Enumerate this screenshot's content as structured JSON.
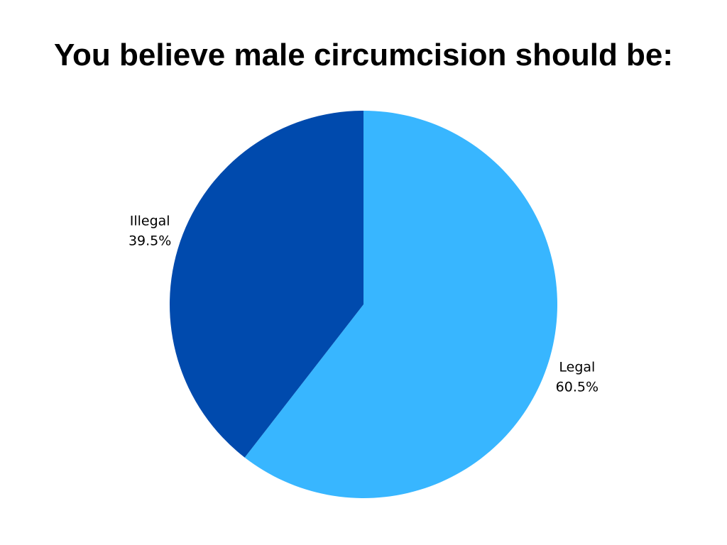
{
  "chart_data": {
    "type": "pie",
    "title": "You believe male circumcision should be:",
    "categories": [
      "Legal",
      "Illegal"
    ],
    "values": [
      60.5,
      39.5
    ],
    "value_labels": [
      "60.5%",
      "39.5%"
    ],
    "colors": [
      "#38b6ff",
      "#004aad"
    ]
  }
}
